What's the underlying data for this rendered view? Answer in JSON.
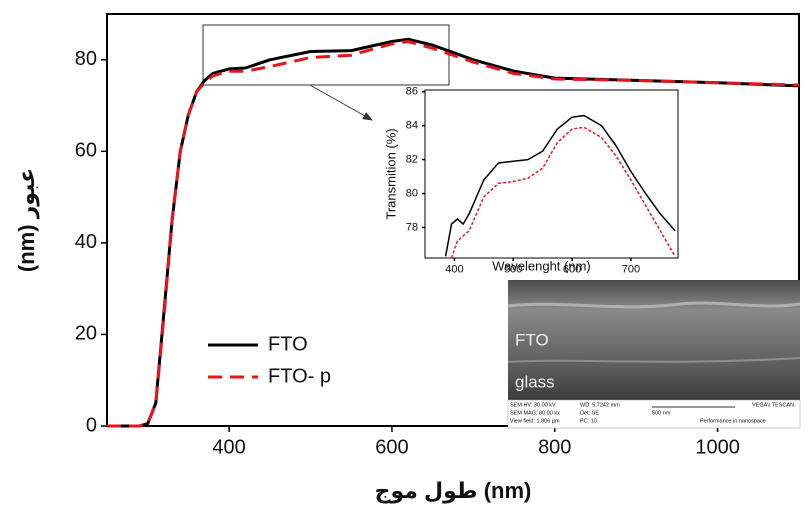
{
  "chart_data": [
    {
      "type": "line",
      "xlabel": "طول موج (nm)",
      "ylabel": "(nm) عبور",
      "x": [
        250,
        290,
        300,
        310,
        320,
        330,
        340,
        350,
        360,
        370,
        380,
        400,
        420,
        450,
        500,
        550,
        600,
        620,
        650,
        700,
        750,
        800,
        900,
        1000,
        1100
      ],
      "series": [
        {
          "name": "FTO",
          "color": "#000000",
          "dash": false,
          "values": [
            0,
            0,
            0.5,
            5,
            25,
            45,
            60,
            68,
            73,
            75.5,
            77,
            78,
            78.2,
            80,
            81.8,
            82,
            84,
            84.5,
            83.2,
            80,
            77.5,
            76,
            75.5,
            75,
            74.3
          ]
        },
        {
          "name": "FTO- p",
          "color": "#e8141b",
          "dash": true,
          "values": [
            0,
            0,
            0.5,
            5,
            24,
            45,
            60,
            68,
            73,
            75,
            76.5,
            77.5,
            77.5,
            78.5,
            80.5,
            81,
            83.5,
            84,
            82.5,
            79.5,
            77,
            75.8,
            75.5,
            75,
            74.5
          ]
        }
      ],
      "xlim": [
        250,
        1100
      ],
      "xticks": [
        400,
        600,
        800,
        1000
      ],
      "ylim": [
        0,
        90
      ],
      "yticks": [
        0,
        20,
        40,
        60,
        80
      ],
      "legend": "lower left"
    },
    {
      "type": "line",
      "xlabel": "Wavelenght (nm)",
      "ylabel": "Transmition (%)",
      "x": [
        385,
        395,
        405,
        415,
        425,
        450,
        475,
        500,
        525,
        550,
        575,
        600,
        620,
        650,
        675,
        700,
        725,
        750,
        775
      ],
      "series": [
        {
          "name": "FTO",
          "color": "#000000",
          "dash": false,
          "values": [
            76.3,
            78.2,
            78.5,
            78.2,
            78.8,
            80.8,
            81.8,
            81.9,
            82,
            82.5,
            83.8,
            84.5,
            84.6,
            84,
            82.8,
            81.3,
            80,
            78.8,
            77.8
          ]
        },
        {
          "name": "FTO- p",
          "color": "#e8141b",
          "dash": true,
          "values": [
            null,
            76.2,
            77.2,
            77.5,
            77.8,
            79.8,
            80.6,
            80.7,
            80.9,
            81.5,
            83,
            83.8,
            83.9,
            83.3,
            82.2,
            80.8,
            79.3,
            77.8,
            76.3
          ]
        }
      ],
      "xlim": [
        350,
        780
      ],
      "xticks": [
        400,
        500,
        600,
        700
      ],
      "ylim": [
        76.2,
        86.1
      ],
      "yticks": [
        78,
        80,
        82,
        84,
        86
      ]
    }
  ],
  "sem_image": {
    "labels": [
      "FTO",
      "glass"
    ],
    "caption": [
      "SEM HV: 30.00 kV",
      "WD: 5.7242 mm",
      "VEGA\\\\ TESCAN",
      "SEM MAG: 80.00 kx",
      "Det: SE",
      "500 nm",
      "View field: 1.806 µm",
      "PC: 10",
      "Performance in nanospace"
    ]
  }
}
